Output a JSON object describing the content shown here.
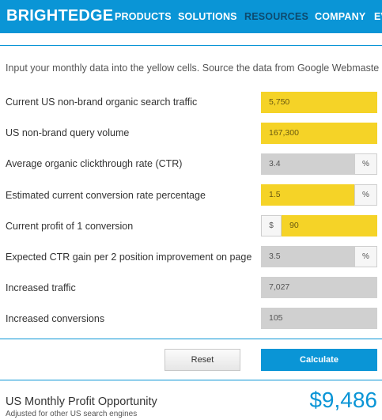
{
  "header": {
    "logo": "BRIGHTEDGE",
    "nav": {
      "products": "PRODUCTS",
      "solutions": "SOLUTIONS",
      "resources": "RESOURCES",
      "company": "COMPANY",
      "cut": "EV"
    }
  },
  "intro": "Input your monthly data into the yellow cells. Source the data from Google Webmaste",
  "rows": [
    {
      "label": "Current US non-brand organic search traffic",
      "value": "5,750"
    },
    {
      "label": "US non-brand query volume",
      "value": "167,300"
    },
    {
      "label": "Average organic clickthrough rate (CTR)",
      "value": "3.4",
      "suffix": "%"
    },
    {
      "label": "Estimated current conversion rate percentage",
      "value": "1.5",
      "suffix": "%"
    },
    {
      "label": "Current profit of 1 conversion",
      "prefix": "$",
      "value": "90"
    },
    {
      "label": "Expected CTR gain per 2 position improvement on page",
      "value": "3.5",
      "suffix": "%"
    },
    {
      "label": "Increased traffic",
      "value": "7,027"
    },
    {
      "label": "Increased conversions",
      "value": "105"
    }
  ],
  "buttons": {
    "reset": "Reset",
    "calculate": "Calculate"
  },
  "result": {
    "title": "US Monthly Profit Opportunity",
    "subtitle": "Adjusted for other US search engines",
    "value": "$9,486"
  },
  "colors": {
    "brand_blue": "#0a95d6",
    "input_yellow": "#f5d327",
    "readonly_gray": "#d0d0d0"
  }
}
